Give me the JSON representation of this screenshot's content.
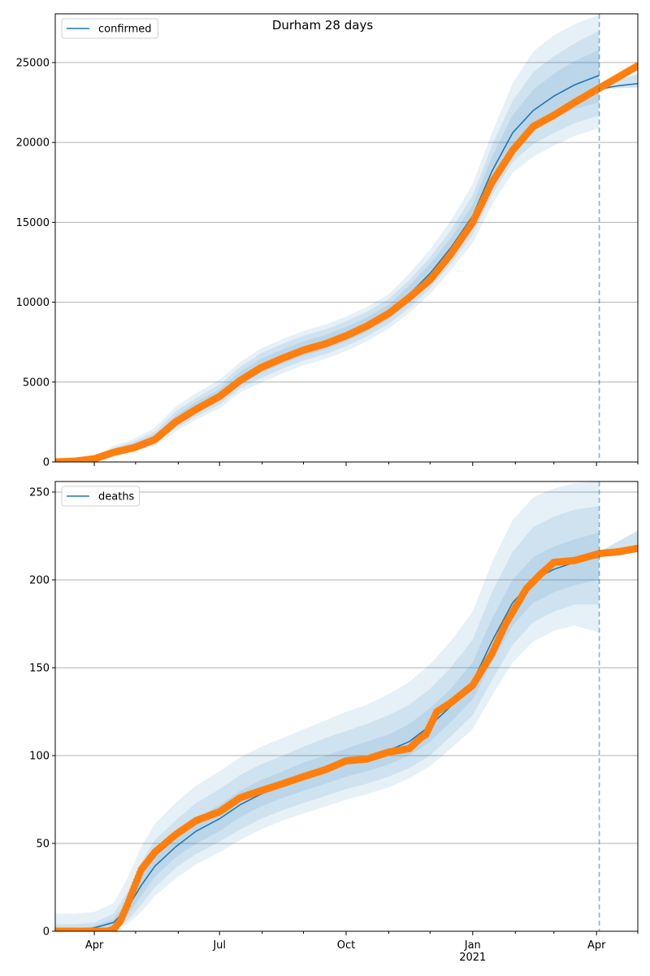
{
  "figure": {
    "title": "Durham 28 days"
  },
  "colors": {
    "median": "#1f77b4",
    "band": "#1f77b4",
    "observed": "#ff7f0e",
    "grid": "#b0b0b0",
    "forecast_line": "#1f77b4"
  },
  "chart_data": [
    {
      "type": "line",
      "name": "confirmed",
      "title": "Durham 28 days",
      "legend": {
        "entries": [
          "confirmed"
        ],
        "position": "top-left"
      },
      "x_unit": "days since 2020-03-01",
      "xlim": [
        2.6,
        426
      ],
      "ylim": [
        0,
        28050
      ],
      "grid": "y",
      "yticks": [
        0,
        5000,
        10000,
        15000,
        20000,
        25000
      ],
      "ytick_labels": [
        "0",
        "5000",
        "10000",
        "15000",
        "20000",
        "25000"
      ],
      "forecast_start_day": 398,
      "x": [
        3,
        17,
        31,
        45,
        60,
        75,
        90,
        105,
        122,
        137,
        152,
        168,
        183,
        199,
        214,
        229,
        245,
        260,
        275,
        290,
        306,
        320,
        335,
        350,
        365,
        380,
        398
      ],
      "median": [
        0,
        60,
        220,
        650,
        1000,
        1500,
        2600,
        3400,
        4200,
        5250,
        6000,
        6600,
        7100,
        7500,
        8000,
        8600,
        9400,
        10500,
        11800,
        13400,
        15400,
        18200,
        20600,
        22000,
        22900,
        23600,
        24200
      ],
      "bands": [
        {
          "lower": [
            0,
            40,
            170,
            520,
            850,
            1300,
            2300,
            3050,
            3850,
            4850,
            5550,
            6150,
            6650,
            7050,
            7550,
            8150,
            8950,
            9950,
            11200,
            12800,
            14700,
            17300,
            19500,
            20700,
            21500,
            22100,
            22500
          ],
          "upper": [
            0,
            80,
            270,
            780,
            1150,
            1700,
            2900,
            3750,
            4550,
            5650,
            6450,
            7050,
            7550,
            7950,
            8450,
            9050,
            9850,
            11050,
            12400,
            14000,
            16100,
            19100,
            21700,
            23300,
            24300,
            25100,
            25800
          ]
        },
        {
          "lower": [
            0,
            30,
            140,
            450,
            760,
            1150,
            2100,
            2850,
            3600,
            4600,
            5250,
            5850,
            6350,
            6750,
            7250,
            7850,
            8650,
            9650,
            10850,
            12400,
            14200,
            16700,
            18800,
            19900,
            20600,
            21200,
            21700
          ],
          "upper": [
            0,
            100,
            320,
            880,
            1300,
            1900,
            3150,
            4000,
            4850,
            5950,
            6800,
            7400,
            7900,
            8300,
            8800,
            9400,
            10200,
            11400,
            12800,
            14500,
            16700,
            19800,
            22600,
            24400,
            25400,
            26200,
            27000
          ]
        },
        {
          "lower": [
            0,
            20,
            110,
            380,
            680,
            1000,
            1900,
            2650,
            3350,
            4350,
            4950,
            5550,
            6050,
            6450,
            6950,
            7550,
            8350,
            9350,
            10500,
            12000,
            13700,
            16100,
            18100,
            19100,
            19800,
            20400,
            20900
          ],
          "upper": [
            0,
            130,
            380,
            1000,
            1450,
            2150,
            3450,
            4300,
            5150,
            6250,
            7100,
            7700,
            8200,
            8600,
            9100,
            9700,
            10500,
            11800,
            13300,
            15100,
            17400,
            20600,
            23700,
            25700,
            26700,
            27400,
            28000
          ]
        }
      ],
      "forecast": {
        "x": [
          398,
          405,
          412,
          419,
          426
        ],
        "median": [
          23300,
          23450,
          23550,
          23620,
          23680
        ],
        "lower": [
          23250,
          23350,
          23400,
          23420,
          23440
        ],
        "upper": [
          23400,
          23700,
          23950,
          24100,
          24300
        ]
      },
      "observed": {
        "x": [
          3,
          17,
          31,
          45,
          60,
          75,
          90,
          105,
          122,
          137,
          152,
          168,
          183,
          199,
          214,
          229,
          245,
          260,
          275,
          290,
          306,
          320,
          335,
          350,
          365,
          380,
          398,
          412,
          426
        ],
        "y": [
          0,
          50,
          200,
          600,
          900,
          1400,
          2500,
          3300,
          4100,
          5100,
          5900,
          6500,
          7000,
          7400,
          7900,
          8500,
          9300,
          10300,
          11400,
          13000,
          15000,
          17500,
          19500,
          21000,
          21700,
          22500,
          23400,
          24100,
          24800
        ]
      }
    },
    {
      "type": "line",
      "name": "deaths",
      "legend": {
        "entries": [
          "deaths"
        ],
        "position": "top-left"
      },
      "x_unit": "days since 2020-03-01",
      "xlim": [
        2.6,
        426
      ],
      "ylim": [
        0,
        256
      ],
      "grid": "y",
      "yticks": [
        0,
        50,
        100,
        150,
        200,
        250
      ],
      "ytick_labels": [
        "0",
        "50",
        "100",
        "150",
        "200",
        "250"
      ],
      "xticks": [
        31,
        122,
        214,
        306,
        396
      ],
      "xtick_labels": [
        "Apr",
        "Jul",
        "Oct",
        "Jan\n2021",
        "Apr"
      ],
      "xminor_ticks": [
        61,
        92,
        153,
        183,
        245,
        275,
        337,
        365,
        426
      ],
      "forecast_start_day": 398,
      "x": [
        3,
        17,
        31,
        45,
        55,
        65,
        75,
        90,
        105,
        122,
        137,
        152,
        168,
        183,
        199,
        214,
        229,
        245,
        260,
        275,
        290,
        306,
        320,
        335,
        350,
        365,
        380,
        398
      ],
      "median": [
        0,
        0,
        2,
        5,
        13,
        26,
        37,
        48,
        57,
        64,
        72,
        78,
        83,
        88,
        92,
        96,
        99,
        103,
        108,
        117,
        128,
        142,
        165,
        187,
        200,
        206,
        210,
        213
      ],
      "bands": [
        {
          "lower": [
            0,
            0,
            1,
            3,
            9,
            20,
            31,
            42,
            50,
            57,
            65,
            71,
            76,
            80,
            84,
            88,
            91,
            95,
            100,
            108,
            119,
            132,
            153,
            174,
            187,
            193,
            197,
            200
          ],
          "upper": [
            1,
            1,
            3,
            7,
            17,
            32,
            44,
            55,
            64,
            72,
            80,
            86,
            91,
            96,
            100,
            104,
            108,
            112,
            118,
            127,
            138,
            153,
            178,
            200,
            213,
            219,
            223,
            227
          ]
        },
        {
          "lower": [
            0,
            0,
            0,
            2,
            6,
            15,
            25,
            36,
            44,
            51,
            58,
            64,
            69,
            73,
            77,
            81,
            84,
            88,
            93,
            100,
            111,
            123,
            143,
            163,
            176,
            182,
            186,
            186
          ],
          "upper": [
            4,
            4,
            5,
            10,
            22,
            39,
            52,
            63,
            73,
            81,
            89,
            95,
            100,
            105,
            110,
            114,
            118,
            123,
            129,
            138,
            150,
            166,
            193,
            216,
            230,
            236,
            240,
            242
          ]
        },
        {
          "lower": [
            0,
            0,
            0,
            1,
            4,
            11,
            20,
            30,
            38,
            45,
            52,
            58,
            63,
            67,
            71,
            75,
            78,
            82,
            87,
            94,
            104,
            115,
            134,
            153,
            165,
            171,
            174,
            170
          ],
          "upper": [
            10,
            10,
            11,
            16,
            30,
            48,
            61,
            73,
            83,
            91,
            99,
            105,
            110,
            115,
            120,
            125,
            129,
            135,
            142,
            152,
            165,
            182,
            210,
            234,
            247,
            252,
            255,
            256
          ]
        }
      ],
      "forecast": {
        "x": [
          398,
          405,
          412,
          419,
          426
        ],
        "median": [
          215,
          216,
          217,
          218,
          219
        ],
        "lower": [
          214,
          214,
          215,
          215,
          216
        ],
        "upper": [
          216,
          219,
          222,
          225,
          228
        ]
      },
      "observed": {
        "x": [
          3,
          17,
          31,
          40,
          45,
          50,
          55,
          60,
          65,
          70,
          75,
          90,
          105,
          122,
          137,
          152,
          168,
          183,
          199,
          214,
          229,
          245,
          260,
          268,
          272,
          280,
          290,
          306,
          320,
          330,
          345,
          355,
          365,
          380,
          398,
          412,
          426
        ],
        "y": [
          0,
          0,
          0,
          0,
          1,
          6,
          15,
          25,
          35,
          40,
          45,
          55,
          63,
          68,
          76,
          80,
          84,
          88,
          92,
          97,
          98,
          102,
          104,
          110,
          112,
          125,
          130,
          140,
          158,
          175,
          195,
          203,
          210,
          211,
          215,
          216,
          218
        ]
      }
    }
  ]
}
